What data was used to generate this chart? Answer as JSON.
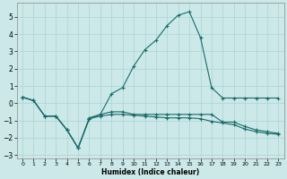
{
  "xlabel": "Humidex (Indice chaleur)",
  "xlim": [
    -0.5,
    23.5
  ],
  "ylim": [
    -3.2,
    5.8
  ],
  "yticks": [
    -3,
    -2,
    -1,
    0,
    1,
    2,
    3,
    4,
    5
  ],
  "xticks": [
    0,
    1,
    2,
    3,
    4,
    5,
    6,
    7,
    8,
    9,
    10,
    11,
    12,
    13,
    14,
    15,
    16,
    17,
    18,
    19,
    20,
    21,
    22,
    23
  ],
  "bg_color": "#cce8e8",
  "line_color": "#1a6b6b",
  "grid_color": "#aad4d4",
  "line1_x": [
    0,
    1,
    2,
    3,
    4,
    5,
    6,
    7,
    8,
    9,
    10,
    11,
    12,
    13,
    14,
    15,
    16,
    17,
    18,
    19,
    20,
    21,
    22,
    23
  ],
  "line1_y": [
    0.35,
    0.15,
    -0.75,
    -0.75,
    -1.55,
    -2.6,
    -0.85,
    -0.65,
    0.55,
    0.9,
    2.15,
    3.1,
    3.65,
    4.5,
    5.1,
    5.3,
    3.8,
    0.9,
    0.3,
    0.3,
    0.3,
    0.3,
    0.3,
    0.3
  ],
  "line2_x": [
    0,
    1,
    2,
    3,
    4,
    5,
    6,
    7,
    8,
    9,
    10,
    11,
    12,
    13,
    14,
    15,
    16,
    17,
    18,
    19,
    20,
    21,
    22,
    23
  ],
  "line2_y": [
    0.35,
    0.15,
    -0.75,
    -0.75,
    -1.55,
    -2.6,
    -0.9,
    -0.65,
    -0.5,
    -0.5,
    -0.65,
    -0.65,
    -0.65,
    -0.65,
    -0.65,
    -0.65,
    -0.65,
    -0.65,
    -1.1,
    -1.1,
    -1.35,
    -1.55,
    -1.65,
    -1.75
  ],
  "line3_x": [
    0,
    1,
    2,
    3,
    4,
    5,
    6,
    7,
    8,
    9,
    10,
    11,
    12,
    13,
    14,
    15,
    16,
    17,
    18,
    19,
    20,
    21,
    22,
    23
  ],
  "line3_y": [
    0.35,
    0.15,
    -0.75,
    -0.75,
    -1.55,
    -2.6,
    -0.9,
    -0.75,
    -0.65,
    -0.65,
    -0.7,
    -0.75,
    -0.8,
    -0.85,
    -0.85,
    -0.85,
    -0.9,
    -1.05,
    -1.15,
    -1.25,
    -1.5,
    -1.65,
    -1.75,
    -1.8
  ]
}
